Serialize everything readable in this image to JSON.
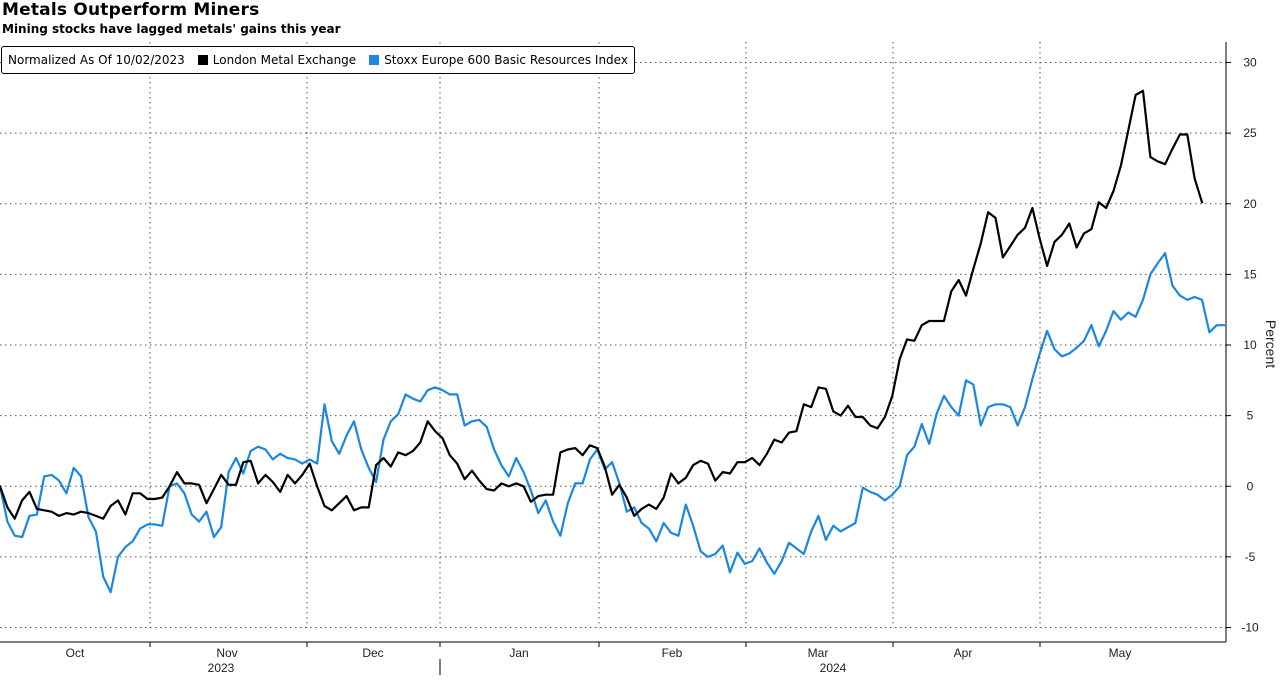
{
  "header": {
    "title": "Metals Outperform Miners",
    "subtitle": "Mining stocks have lagged metals' gains this year"
  },
  "legend": {
    "note": "Normalized As Of 10/02/2023",
    "entries": [
      {
        "label": "London Metal Exchange",
        "color": "#000000"
      },
      {
        "label": "Stoxx Europe 600 Basic Resources Index",
        "color": "#1a87e0"
      }
    ]
  },
  "chart_data": {
    "type": "line",
    "ylabel": "Percent",
    "ylim": [
      -10,
      30
    ],
    "yticks": [
      30,
      25,
      20,
      15,
      10,
      5,
      0,
      -5,
      -10
    ],
    "y_axis_side": "right",
    "grid": "dotted",
    "x_labels": {
      "months": [
        "Oct",
        "Nov",
        "Dec",
        "Jan",
        "Feb",
        "Mar",
        "Apr",
        "May"
      ],
      "years": [
        "2023",
        "2024"
      ]
    },
    "series": [
      {
        "name": "London Metal Exchange",
        "color": "#000000",
        "values": [
          0,
          -1.5,
          -2.3,
          -1,
          -0.4,
          -1.6,
          -1.7,
          -1.8,
          -2.1,
          -1.9,
          -2,
          -1.8,
          -1.9,
          -2.1,
          -2.3,
          -1.4,
          -1,
          -2,
          -0.5,
          -0.5,
          -0.9,
          -0.9,
          -0.8,
          0,
          1,
          0.2,
          0.2,
          0.1,
          -1.2,
          -0.2,
          0.8,
          0.1,
          0.1,
          1.7,
          1.8,
          0.2,
          0.8,
          0.3,
          -0.4,
          0.8,
          0.2,
          0.8,
          1.6,
          0,
          -1.4,
          -1.7,
          -1.2,
          -0.7,
          -1.7,
          -1.5,
          -1.5,
          1.5,
          2,
          1.4,
          2.4,
          2.2,
          2.5,
          3.1,
          4.6,
          3.9,
          3.4,
          2.2,
          1.6,
          0.5,
          1.1,
          0.4,
          -0.2,
          -0.3,
          0.2,
          0,
          0.2,
          0,
          -1.1,
          -0.7,
          -0.6,
          -0.6,
          2.4,
          2.6,
          2.7,
          2.2,
          2.9,
          2.7,
          1.4,
          -0.6,
          0.1,
          -0.8,
          -2.1,
          -1.6,
          -1.3,
          -1.6,
          -0.8,
          0.9,
          0.2,
          0.6,
          1.5,
          1.8,
          1.6,
          0.4,
          1,
          0.9,
          1.7,
          1.7,
          2,
          1.5,
          2.3,
          3.3,
          3.1,
          3.8,
          3.9,
          5.8,
          5.6,
          7,
          6.9,
          5.3,
          5,
          5.7,
          4.9,
          4.9,
          4.3,
          4.1,
          4.9,
          6.4,
          9,
          10.4,
          10.3,
          11.4,
          11.7,
          11.7,
          11.7,
          13.8,
          14.6,
          13.5,
          15.4,
          17.2,
          19.4,
          19,
          16.2,
          17,
          17.8,
          18.3,
          19.7,
          17.5,
          15.6,
          17.3,
          17.8,
          18.6,
          16.9,
          17.9,
          18.2,
          20.1,
          19.7,
          20.9,
          22.7,
          25.2,
          27.7,
          28,
          23.3,
          23,
          22.8,
          23.9,
          24.9,
          24.9,
          21.8,
          20.1
        ]
      },
      {
        "name": "Stoxx Europe 600 Basic Resources Index",
        "color": "#1a87e0",
        "values": [
          0,
          -2.5,
          -3.5,
          -3.6,
          -2.1,
          -2,
          0.7,
          0.8,
          0.4,
          -0.5,
          1.3,
          0.7,
          -2.2,
          -3.2,
          -6.4,
          -7.5,
          -5,
          -4.3,
          -3.9,
          -3,
          -2.7,
          -2.7,
          -2.8,
          0,
          0.2,
          -0.5,
          -2,
          -2.5,
          -1.8,
          -3.6,
          -2.9,
          1,
          2,
          0.9,
          2.5,
          2.8,
          2.6,
          1.9,
          2.3,
          2,
          1.9,
          1.6,
          1.9,
          1.6,
          5.8,
          3.2,
          2.3,
          3.6,
          4.6,
          2.6,
          1.3,
          0.3,
          3.3,
          4.6,
          5.1,
          6.5,
          6.2,
          6,
          6.8,
          7,
          6.8,
          6.5,
          6.5,
          4.3,
          4.6,
          4.7,
          4.2,
          2.6,
          1.5,
          0.7,
          2,
          1,
          -0.3,
          -1.9,
          -1,
          -2.5,
          -3.5,
          -1.2,
          0.2,
          0.2,
          1.9,
          2.6,
          1.2,
          1.7,
          0.2,
          -1.8,
          -1.5,
          -2.6,
          -3,
          -3.9,
          -2.6,
          -3.3,
          -3.5,
          -1.3,
          -2.8,
          -4.6,
          -5,
          -4.8,
          -4.2,
          -6.1,
          -4.7,
          -5.5,
          -5.3,
          -4.4,
          -5.4,
          -6.2,
          -5.3,
          -4,
          -4.4,
          -4.8,
          -3.2,
          -2.1,
          -3.8,
          -2.8,
          -3.2,
          -2.9,
          -2.6,
          -0.1,
          -0.4,
          -0.6,
          -1,
          -0.6,
          0,
          2.2,
          2.8,
          4.4,
          3,
          5.1,
          6.4,
          5.6,
          5,
          7.5,
          7.2,
          4.3,
          5.6,
          5.8,
          5.8,
          5.6,
          4.3,
          5.6,
          7.6,
          9.4,
          11,
          9.7,
          9.2,
          9.4,
          9.8,
          10.3,
          11.4,
          9.9,
          11,
          12.4,
          11.8,
          12.3,
          12,
          13.2,
          15,
          15.8,
          16.5,
          14.2,
          13.5,
          13.2,
          13.4,
          13.2,
          10.9,
          11.4,
          11.4
        ]
      }
    ]
  }
}
